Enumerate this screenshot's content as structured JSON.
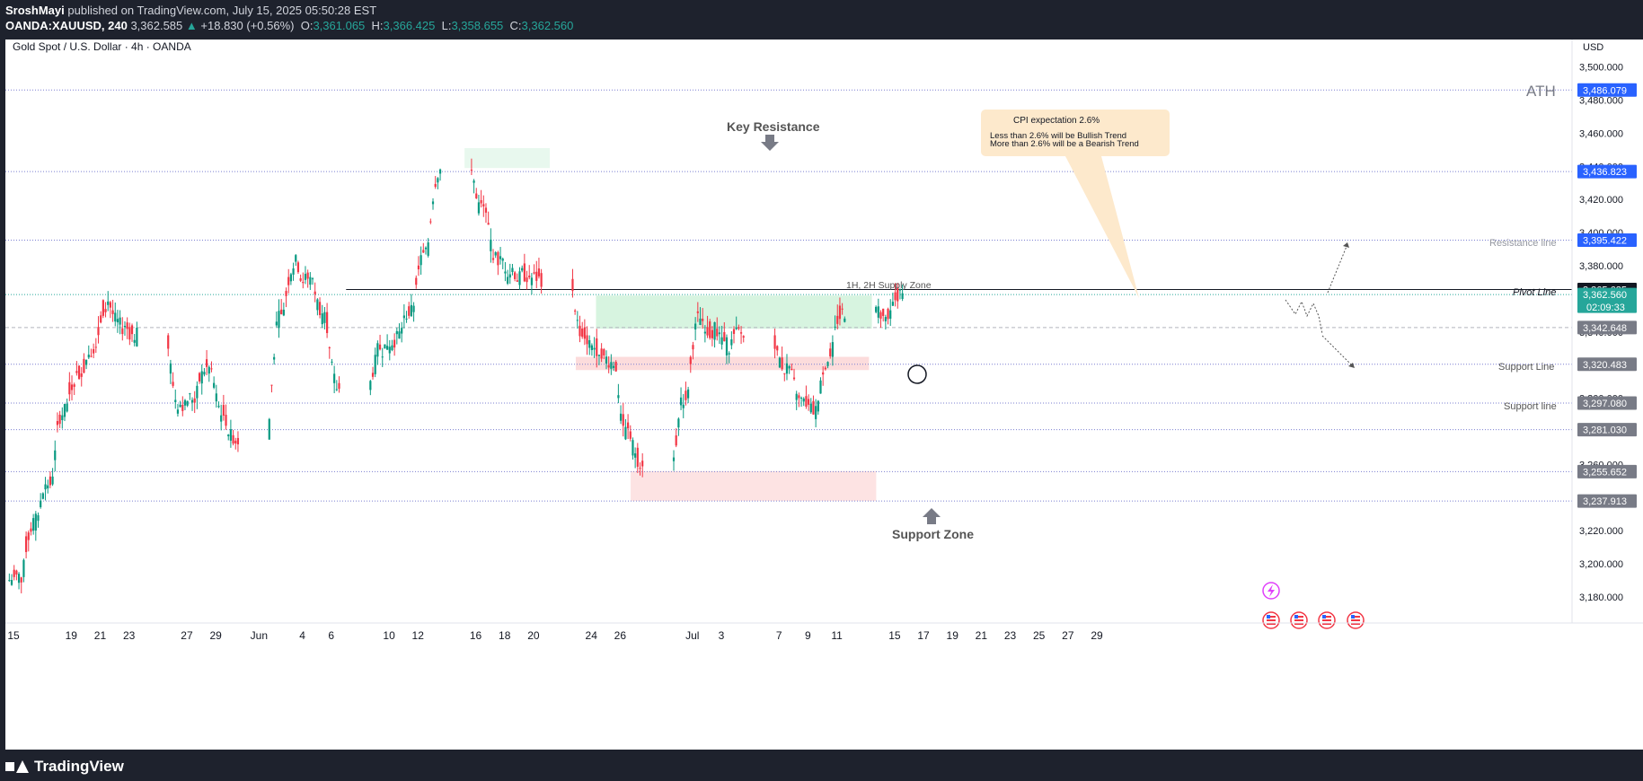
{
  "header": {
    "author": "SroshMayi",
    "published": "published on TradingView.com, July 15, 2025 05:50:28 EST",
    "symbol": "OANDA:XAUUSD, 240",
    "last": "3,362.585",
    "arrow": "▲",
    "change": "+18.830 (+0.56%)",
    "o_label": "O:",
    "o_value": "3,361.065",
    "h_label": "H:",
    "h_value": "3,366.425",
    "l_label": "L:",
    "l_value": "3,358.655",
    "c_label": "C:",
    "c_value": "3,362.560"
  },
  "chart_title": "Gold Spot / U.S. Dollar · 4h · OANDA",
  "currency": "USD",
  "footer": {
    "logo_text": "TradingView"
  },
  "colors": {
    "up": "#089981",
    "down": "#f23645",
    "accent": "#2962ff"
  },
  "icons": {
    "lightning": "lightning-icon",
    "flag": "us-flag-icon"
  },
  "chart_data": {
    "type": "candlestick",
    "ylim": [
      3163,
      3515
    ],
    "y_ticks": [
      3180,
      3200,
      3220,
      3240,
      3260,
      3280,
      3300,
      3320,
      3340,
      3360,
      3380,
      3400,
      3420,
      3440,
      3460,
      3480,
      3500
    ],
    "y_tick_labels": [
      "3,180.000",
      "3,200.000",
      "3,220.000",
      "3,240.000",
      "3,260.000",
      "3,280.000",
      "3,300.000",
      "3,320.000",
      "3,340.000",
      "3,360.000",
      "3,380.000",
      "3,400.000",
      "3,420.000",
      "3,440.000",
      "3,460.000",
      "3,480.000",
      "3,500.000"
    ],
    "x_ticks": [
      {
        "label": "15",
        "day": 0
      },
      {
        "label": "19",
        "day": 4
      },
      {
        "label": "21",
        "day": 6
      },
      {
        "label": "23",
        "day": 8
      },
      {
        "label": "27",
        "day": 12
      },
      {
        "label": "29",
        "day": 14
      },
      {
        "label": "Jun",
        "day": 17
      },
      {
        "label": "4",
        "day": 20
      },
      {
        "label": "6",
        "day": 22
      },
      {
        "label": "10",
        "day": 26
      },
      {
        "label": "12",
        "day": 28
      },
      {
        "label": "16",
        "day": 32
      },
      {
        "label": "18",
        "day": 34
      },
      {
        "label": "20",
        "day": 36
      },
      {
        "label": "24",
        "day": 40
      },
      {
        "label": "26",
        "day": 42
      },
      {
        "label": "Jul",
        "day": 47
      },
      {
        "label": "3",
        "day": 49
      },
      {
        "label": "7",
        "day": 53
      },
      {
        "label": "9",
        "day": 55
      },
      {
        "label": "11",
        "day": 57
      },
      {
        "label": "15",
        "day": 61
      },
      {
        "label": "17",
        "day": 63
      },
      {
        "label": "19",
        "day": 65
      },
      {
        "label": "21",
        "day": 67
      },
      {
        "label": "23",
        "day": 69
      },
      {
        "label": "25",
        "day": 71
      },
      {
        "label": "27",
        "day": 73
      },
      {
        "label": "29",
        "day": 75
      }
    ],
    "trading_days": [
      0,
      1,
      2,
      3,
      4,
      5,
      6,
      7,
      8,
      11,
      12,
      13,
      14,
      15,
      18,
      19,
      20,
      21,
      22,
      25,
      26,
      27,
      28,
      29,
      32,
      33,
      34,
      35,
      36,
      39,
      40,
      41,
      42,
      43,
      46,
      47,
      48,
      49,
      50,
      53,
      54,
      55,
      56,
      57,
      60,
      61
    ],
    "daily_closes": [
      3192,
      3226,
      3248,
      3292,
      3315,
      3331,
      3358,
      3343,
      3338,
      3296,
      3300,
      3318,
      3290,
      3275,
      3350,
      3382,
      3372,
      3352,
      3305,
      3330,
      3336,
      3352,
      3386,
      3438,
      3415,
      3384,
      3376,
      3374,
      3372,
      3338,
      3330,
      3322,
      3280,
      3262,
      3300,
      3348,
      3342,
      3332,
      3338,
      3318,
      3298,
      3292,
      3325,
      3352,
      3348,
      3362
    ],
    "price_labels": [
      {
        "value": 3486.079,
        "text": "3,486.079",
        "bg": "#2962ff"
      },
      {
        "value": 3436.823,
        "text": "3,436.823",
        "bg": "#2962ff"
      },
      {
        "value": 3395.422,
        "text": "3,395.422",
        "bg": "#2962ff"
      },
      {
        "value": 3365.635,
        "text": "3,365.635",
        "bg": "#131722"
      },
      {
        "value": 3362.56,
        "text": "3,362.560",
        "bg": "#26a69a"
      },
      {
        "value": 3342.648,
        "text": "3,342.648",
        "bg": "#787b86"
      },
      {
        "value": 3320.483,
        "text": "3,320.483",
        "bg": "#787b86"
      },
      {
        "value": 3297.08,
        "text": "3,297.080",
        "bg": "#787b86"
      },
      {
        "value": 3281.03,
        "text": "3,281.030",
        "bg": "#787b86"
      },
      {
        "value": 3255.652,
        "text": "3,255.652",
        "bg": "#787b86"
      },
      {
        "value": 3237.913,
        "text": "3,237.913",
        "bg": "#787b86"
      }
    ],
    "countdown": "02:09:33",
    "annotations": {
      "ath": "ATH",
      "key_resistance": "Key Resistance",
      "support_zone": "Support Zone",
      "supply_zone": "1H, 2H Supply Zone",
      "resistance_line": "Resistance line",
      "pivot_line": "Pivot Line",
      "support_line_1": "Support Line",
      "support_line_2": "Support line",
      "cpi_title": "CPI expectation 2.6%",
      "cpi_line1": "Less than 2.6% will be Bullish Trend",
      "cpi_line2": "More than 2.6% will be a Bearish Trend"
    },
    "zones": [
      {
        "name": "key-resistance-zone",
        "day_from": 31.6,
        "day_to": 37.5,
        "high": 3451,
        "low": 3439,
        "color": "#e8f8ee"
      },
      {
        "name": "supply-zone",
        "day_from": 40.7,
        "day_to": 59.8,
        "high": 3362,
        "low": 3342,
        "color": "#d7f4e0"
      },
      {
        "name": "support-line-zone",
        "day_from": 39.3,
        "day_to": 59.6,
        "high": 3325,
        "low": 3317,
        "color": "#fcdcdc"
      },
      {
        "name": "support-zone",
        "day_from": 43.1,
        "day_to": 60.1,
        "high": 3256,
        "low": 3238,
        "color": "#fde3e3"
      }
    ],
    "hlines": [
      {
        "value": 3486.079,
        "style": "dotted",
        "color": "#7b7fd1"
      },
      {
        "value": 3436.823,
        "style": "dotted",
        "color": "#7b7fd1"
      },
      {
        "value": 3395.422,
        "style": "dotted",
        "color": "#7b7fd1"
      },
      {
        "value": 3365.635,
        "style": "solid",
        "color": "#131722"
      },
      {
        "value": 3362.56,
        "style": "dotted",
        "color": "#26a69a"
      },
      {
        "value": 3342.648,
        "style": "dashed",
        "color": "#b2b5be"
      },
      {
        "value": 3320.483,
        "style": "dotted",
        "color": "#7b7fd1"
      },
      {
        "value": 3297.08,
        "style": "dotted",
        "color": "#7b7fd1"
      },
      {
        "value": 3281.03,
        "style": "dotted",
        "color": "#7b7fd1"
      },
      {
        "value": 3255.652,
        "style": "dotted",
        "color": "#7b7fd1"
      },
      {
        "value": 3237.913,
        "style": "dotted",
        "color": "#7b7fd1"
      }
    ]
  }
}
